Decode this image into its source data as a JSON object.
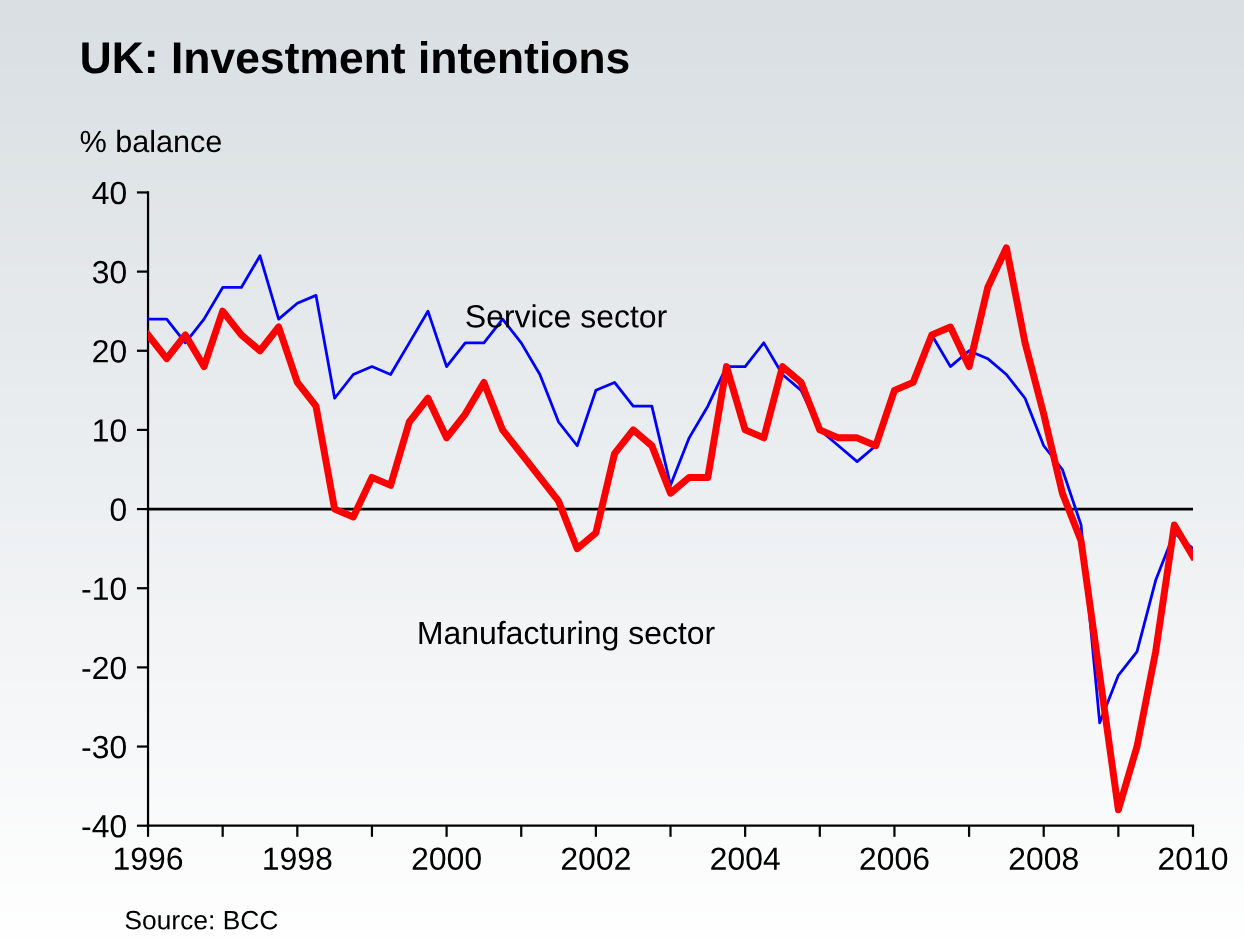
{
  "chart_data": {
    "type": "line",
    "title": "UK: Investment intentions",
    "ylabel": "% balance",
    "annotations": [
      "Source: BCC"
    ],
    "x": [
      1996,
      1996.25,
      1996.5,
      1996.75,
      1997,
      1997.25,
      1997.5,
      1997.75,
      1998,
      1998.25,
      1998.5,
      1998.75,
      1999,
      1999.25,
      1999.5,
      1999.75,
      2000,
      2000.25,
      2000.5,
      2000.75,
      2001,
      2001.25,
      2001.5,
      2001.75,
      2002,
      2002.25,
      2002.5,
      2002.75,
      2003,
      2003.25,
      2003.5,
      2003.75,
      2004,
      2004.25,
      2004.5,
      2004.75,
      2005,
      2005.25,
      2005.5,
      2005.75,
      2006,
      2006.25,
      2006.5,
      2006.75,
      2007,
      2007.25,
      2007.5,
      2007.75,
      2008,
      2008.25,
      2008.5,
      2008.75,
      2009,
      2009.25,
      2009.5,
      2009.75,
      2010
    ],
    "series": [
      {
        "name": "Service sector",
        "color": "#0000ff",
        "values": [
          24,
          24,
          21,
          24,
          28,
          28,
          32,
          24,
          26,
          27,
          14,
          17,
          18,
          17,
          21,
          25,
          18,
          21,
          21,
          24,
          21,
          17,
          11,
          8,
          15,
          16,
          13,
          13,
          3,
          9,
          13,
          18,
          18,
          21,
          17,
          15,
          10,
          8,
          6,
          8,
          15,
          16,
          22,
          18,
          20,
          19,
          17,
          14,
          8,
          5,
          -2,
          -27,
          -21,
          -18,
          -9,
          -3,
          -5
        ]
      },
      {
        "name": "Manufacturing sector",
        "color": "#ff0000",
        "values": [
          22,
          19,
          22,
          18,
          25,
          22,
          20,
          23,
          16,
          13,
          0,
          -1,
          4,
          3,
          11,
          14,
          9,
          12,
          16,
          10,
          7,
          4,
          1,
          -5,
          -3,
          7,
          10,
          8,
          2,
          4,
          4,
          18,
          10,
          9,
          18,
          16,
          10,
          9,
          9,
          8,
          15,
          16,
          22,
          23,
          18,
          28,
          33,
          21,
          12,
          2,
          -4,
          -21,
          -38,
          -30,
          -18,
          -2,
          -6
        ]
      }
    ],
    "xlim": [
      1996,
      2010
    ],
    "xticks": [
      1996,
      {
        "value": 1997,
        "label": null
      },
      1998,
      {
        "value": 1999,
        "label": null
      },
      2000,
      {
        "value": 2001,
        "label": null
      },
      2002,
      {
        "value": 2003,
        "label": null
      },
      2004,
      {
        "value": 2005,
        "label": null
      },
      2006,
      {
        "value": 2007,
        "label": null
      },
      2008,
      {
        "value": 2009,
        "label": null
      },
      2010
    ],
    "ylim": [
      -40,
      40
    ],
    "yticks": [
      -40,
      -30,
      -20,
      -10,
      0,
      10,
      20,
      30,
      40
    ],
    "ref_lines": [
      {
        "axis": "y",
        "value": 0,
        "color": "#000000"
      }
    ],
    "grid": false,
    "legend": false
  }
}
